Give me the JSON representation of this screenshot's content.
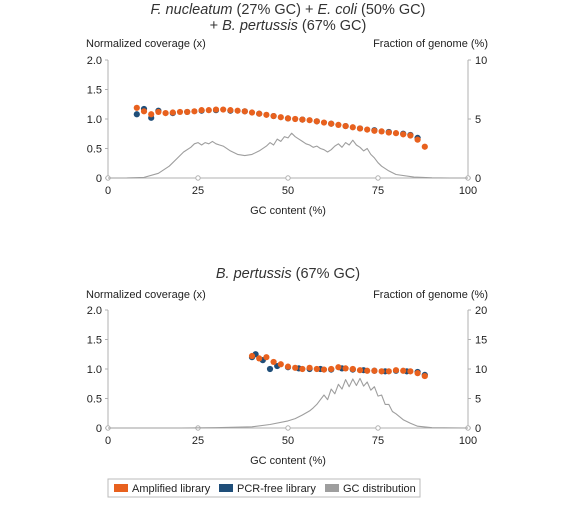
{
  "colors": {
    "amplified": "#E8611E",
    "pcr_free": "#1F4E79",
    "gc_distribution": "#9E9E9E",
    "axis": "#B0B0B0",
    "text": "#222222"
  },
  "legend": {
    "items": [
      {
        "label": "Amplified library",
        "color": "#E8611E"
      },
      {
        "label": "PCR-free library",
        "color": "#1F4E79"
      },
      {
        "label": "GC distribution",
        "color": "#9E9E9E"
      }
    ]
  },
  "chart_data": [
    {
      "type": "scatter",
      "title_parts": [
        {
          "text": "F. nucleatum",
          "italic": true
        },
        {
          "text": " (27% GC) + ",
          "italic": false
        },
        {
          "text": "E. coli",
          "italic": true
        },
        {
          "text": " (50% GC)",
          "italic": false
        }
      ],
      "title_line2_parts": [
        {
          "text": "+ ",
          "italic": false
        },
        {
          "text": "B. pertussis",
          "italic": true
        },
        {
          "text": " (67% GC)",
          "italic": false
        }
      ],
      "ylabel": "Normalized coverage (x)",
      "y2label": "Fraction of genome (%)",
      "xlabel": "GC content (%)",
      "xlim": [
        0,
        100
      ],
      "ylim": [
        0,
        2.0
      ],
      "y2lim": [
        0,
        10
      ],
      "xticks": [
        "0",
        "25",
        "50",
        "75",
        "100"
      ],
      "yticks": [
        "0",
        "0.5",
        "1.0",
        "1.5",
        "2.0"
      ],
      "y2ticks": [
        "0",
        "5",
        "10"
      ],
      "series": [
        {
          "name": "Amplified library",
          "x": [
            8,
            10,
            12,
            14,
            16,
            18,
            20,
            22,
            24,
            26,
            28,
            30,
            32,
            34,
            36,
            38,
            40,
            42,
            44,
            46,
            48,
            50,
            52,
            54,
            56,
            58,
            60,
            62,
            64,
            66,
            68,
            70,
            72,
            74,
            76,
            78,
            80,
            82,
            84,
            86,
            88
          ],
          "y": [
            1.19,
            1.13,
            1.08,
            1.12,
            1.1,
            1.11,
            1.12,
            1.12,
            1.13,
            1.15,
            1.15,
            1.16,
            1.16,
            1.15,
            1.14,
            1.13,
            1.11,
            1.09,
            1.07,
            1.05,
            1.03,
            1.01,
            1.0,
            0.99,
            0.98,
            0.96,
            0.94,
            0.92,
            0.9,
            0.88,
            0.86,
            0.84,
            0.82,
            0.8,
            0.79,
            0.77,
            0.76,
            0.74,
            0.72,
            0.65,
            0.53
          ]
        },
        {
          "name": "PCR-free library",
          "x": [
            8,
            10,
            12,
            14,
            18,
            22,
            26,
            30,
            34,
            38,
            42,
            46,
            50,
            54,
            58,
            62,
            66,
            70,
            74,
            78,
            82,
            84,
            86
          ],
          "y": [
            1.08,
            1.17,
            1.02,
            1.14,
            1.1,
            1.12,
            1.14,
            1.15,
            1.14,
            1.13,
            1.09,
            1.05,
            1.01,
            0.99,
            0.96,
            0.92,
            0.88,
            0.84,
            0.81,
            0.78,
            0.75,
            0.73,
            0.68
          ]
        },
        {
          "name": "GC distribution",
          "x": [
            0,
            5,
            10,
            14,
            17,
            19,
            21,
            23,
            24,
            25,
            26,
            27,
            28,
            29,
            30,
            31,
            32,
            34,
            36,
            38,
            40,
            42,
            44,
            45,
            46,
            47,
            48,
            49,
            50,
            51,
            52,
            53,
            54,
            55,
            56,
            57,
            58,
            59,
            60,
            61,
            62,
            63,
            64,
            65,
            66,
            67,
            68,
            69,
            70,
            71,
            72,
            73,
            74,
            75,
            76,
            78,
            80,
            85,
            90,
            95,
            100
          ],
          "y": [
            0,
            0,
            0.05,
            0.4,
            1.0,
            1.6,
            2.2,
            2.6,
            2.9,
            3.0,
            2.8,
            3.0,
            2.9,
            3.1,
            2.9,
            2.8,
            2.7,
            2.3,
            2.0,
            1.9,
            2.0,
            2.3,
            2.7,
            3.0,
            2.8,
            3.3,
            3.1,
            3.5,
            3.4,
            3.8,
            3.5,
            3.3,
            3.1,
            2.9,
            2.8,
            2.6,
            2.7,
            2.5,
            2.4,
            2.2,
            2.4,
            2.7,
            2.9,
            2.6,
            3.0,
            2.8,
            3.2,
            2.8,
            2.6,
            2.3,
            2.5,
            2.0,
            1.7,
            1.3,
            1.0,
            0.6,
            0.3,
            0.08,
            0.02,
            0,
            0
          ]
        }
      ]
    },
    {
      "type": "scatter",
      "title_parts": [
        {
          "text": "B. pertussis",
          "italic": true
        },
        {
          "text": " (67% GC)",
          "italic": false
        }
      ],
      "ylabel": "Normalized coverage (x)",
      "y2label": "Fraction of genome (%)",
      "xlabel": "GC content (%)",
      "xlim": [
        0,
        100
      ],
      "ylim": [
        0,
        2.0
      ],
      "y2lim": [
        0,
        20
      ],
      "xticks": [
        "0",
        "25",
        "50",
        "75",
        "100"
      ],
      "yticks": [
        "0",
        "0.5",
        "1.0",
        "1.5",
        "2.0"
      ],
      "y2ticks": [
        "0",
        "5",
        "10",
        "15",
        "20"
      ],
      "series": [
        {
          "name": "Amplified library",
          "x": [
            40,
            42,
            44,
            46,
            48,
            50,
            52,
            54,
            56,
            58,
            60,
            62,
            64,
            66,
            68,
            70,
            72,
            74,
            76,
            78,
            80,
            82,
            84,
            86,
            88
          ],
          "y": [
            1.22,
            1.18,
            1.2,
            1.12,
            1.08,
            1.04,
            1.02,
            1.0,
            1.02,
            1.0,
            0.99,
            1.0,
            1.03,
            1.01,
            1.0,
            0.98,
            0.97,
            0.97,
            0.96,
            0.96,
            0.98,
            0.97,
            0.96,
            0.93,
            0.88
          ]
        },
        {
          "name": "PCR-free library",
          "x": [
            40,
            41,
            43,
            45,
            47,
            50,
            53,
            56,
            59,
            62,
            65,
            68,
            71,
            74,
            77,
            80,
            83,
            86,
            88
          ],
          "y": [
            1.2,
            1.25,
            1.15,
            1.0,
            1.05,
            1.03,
            1.01,
            1.0,
            1.0,
            0.99,
            1.01,
            0.99,
            0.98,
            0.97,
            0.96,
            0.97,
            0.96,
            0.95,
            0.9
          ]
        },
        {
          "name": "GC distribution",
          "x": [
            0,
            10,
            20,
            30,
            40,
            45,
            50,
            52,
            54,
            56,
            57,
            58,
            59,
            60,
            61,
            62,
            63,
            64,
            65,
            66,
            67,
            68,
            69,
            70,
            71,
            72,
            73,
            74,
            75,
            76,
            77,
            78,
            79,
            80,
            82,
            84,
            86,
            90,
            100
          ],
          "y": [
            0,
            0,
            0,
            0.05,
            0.2,
            0.6,
            1.2,
            1.6,
            2.2,
            2.9,
            3.4,
            4.0,
            4.8,
            5.6,
            4.8,
            6.6,
            5.8,
            7.4,
            6.6,
            8.2,
            7.0,
            8.3,
            7.2,
            8.4,
            7.1,
            7.8,
            6.4,
            7.0,
            5.4,
            5.6,
            4.0,
            4.0,
            2.8,
            2.4,
            1.4,
            0.8,
            0.3,
            0.05,
            0
          ]
        }
      ]
    }
  ]
}
